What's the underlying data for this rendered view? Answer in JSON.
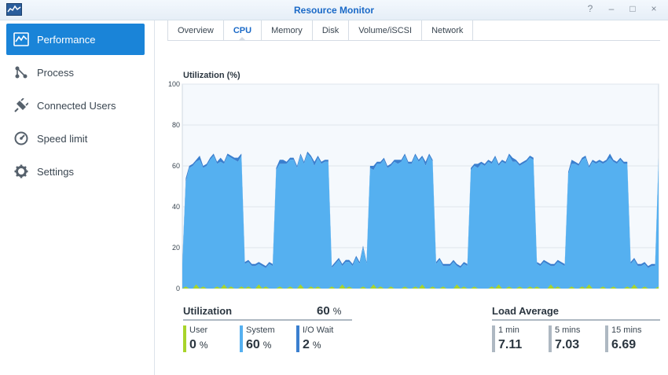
{
  "window": {
    "title": "Resource Monitor",
    "buttons": [
      "?",
      "–",
      "□",
      "×"
    ]
  },
  "sidebar": {
    "items": [
      {
        "label": "Performance",
        "icon": "chart-icon",
        "active": true
      },
      {
        "label": "Process",
        "icon": "process-icon",
        "active": false
      },
      {
        "label": "Connected Users",
        "icon": "plug-icon",
        "active": false
      },
      {
        "label": "Speed limit",
        "icon": "speedometer-icon",
        "active": false
      },
      {
        "label": "Settings",
        "icon": "gear-icon",
        "active": false
      }
    ]
  },
  "tabs": [
    {
      "label": "Overview",
      "active": false
    },
    {
      "label": "CPU",
      "active": true
    },
    {
      "label": "Memory",
      "active": false
    },
    {
      "label": "Disk",
      "active": false
    },
    {
      "label": "Volume/iSCSI",
      "active": false
    },
    {
      "label": "Network",
      "active": false
    }
  ],
  "chart_data": {
    "type": "area",
    "title": "Utilization (%)",
    "ylim": [
      0,
      100
    ],
    "yticks": [
      "0",
      "20",
      "40",
      "60",
      "80",
      "100"
    ],
    "grid": true,
    "series": [
      {
        "name": "System",
        "color": "#55b0f0",
        "values": [
          12,
          52,
          59,
          60,
          62,
          63,
          59,
          60,
          63,
          65,
          61,
          62,
          61,
          65,
          64,
          63,
          62,
          65,
          12,
          13,
          11,
          11,
          12,
          11,
          10,
          12,
          11,
          58,
          61,
          61,
          61,
          63,
          63,
          59,
          65,
          61,
          66,
          64,
          60,
          64,
          61,
          62,
          62,
          10,
          12,
          14,
          11,
          13,
          13,
          11,
          15,
          12,
          20,
          12,
          59,
          58,
          61,
          61,
          63,
          59,
          60,
          62,
          61,
          62,
          65,
          61,
          61,
          65,
          62,
          64,
          60,
          65,
          62,
          12,
          14,
          11,
          11,
          11,
          13,
          11,
          10,
          12,
          11,
          58,
          60,
          59,
          61,
          60,
          62,
          61,
          64,
          60,
          62,
          61,
          65,
          62,
          62,
          60,
          61,
          62,
          64,
          63,
          12,
          11,
          13,
          12,
          11,
          11,
          13,
          12,
          11,
          56,
          61,
          61,
          60,
          63,
          64,
          59,
          62,
          61,
          62,
          61,
          62,
          64,
          62,
          61,
          63,
          61,
          61,
          12,
          14,
          11,
          11,
          12,
          10,
          11,
          11,
          63
        ]
      },
      {
        "name": "I/O Wait",
        "color": "#3a7fcf",
        "values": [
          1,
          2,
          1,
          1,
          1,
          2,
          1,
          1,
          1,
          1,
          1,
          2,
          1,
          1,
          1,
          1,
          2,
          1,
          1,
          1,
          1,
          1,
          1,
          1,
          1,
          1,
          1,
          1,
          2,
          2,
          1,
          1,
          1,
          1,
          1,
          1,
          1,
          1,
          2,
          1,
          1,
          1,
          1,
          1,
          1,
          1,
          1,
          1,
          1,
          1,
          1,
          1,
          1,
          1,
          1,
          2,
          1,
          1,
          1,
          1,
          1,
          1,
          2,
          1,
          1,
          1,
          1,
          1,
          1,
          1,
          2,
          1,
          1,
          1,
          1,
          1,
          1,
          1,
          1,
          1,
          1,
          1,
          1,
          1,
          1,
          2,
          1,
          1,
          1,
          1,
          1,
          1,
          1,
          1,
          1,
          2,
          1,
          1,
          1,
          1,
          1,
          1,
          1,
          1,
          1,
          1,
          1,
          1,
          1,
          1,
          1,
          1,
          2,
          1,
          1,
          1,
          1,
          1,
          1,
          1,
          1,
          1,
          1,
          2,
          1,
          1,
          1,
          1,
          1,
          1,
          1,
          1,
          1,
          1,
          1,
          1,
          1,
          1,
          1,
          1
        ]
      },
      {
        "name": "User",
        "color": "#a8d42a",
        "values": [
          0,
          1,
          0,
          0,
          2,
          0,
          1,
          0,
          0,
          0,
          1,
          0,
          2,
          0,
          1,
          0,
          0,
          1,
          0,
          1,
          0,
          0,
          2,
          0,
          1,
          0,
          0,
          0,
          1,
          0,
          0,
          1,
          0,
          0,
          2,
          0,
          0,
          1,
          0,
          1,
          0,
          0,
          0,
          1,
          0,
          0,
          2,
          0,
          1,
          0,
          0,
          0,
          1,
          0,
          0,
          2,
          0,
          1,
          0,
          0,
          1,
          0,
          0,
          0,
          1,
          0,
          0,
          1,
          0,
          2,
          0,
          0,
          1,
          0,
          0,
          1,
          0,
          0,
          0,
          2,
          0,
          1,
          0,
          0,
          1,
          0,
          0,
          0,
          0,
          1,
          0,
          2,
          0,
          0,
          1,
          0,
          0,
          1,
          0,
          0,
          1,
          0,
          1,
          0,
          0,
          0,
          2,
          0,
          1,
          0,
          0,
          0,
          1,
          0,
          0,
          1,
          0,
          2,
          0,
          0,
          0,
          1,
          0,
          0,
          1,
          0,
          0,
          0,
          1,
          0,
          2,
          0,
          0,
          1,
          0,
          0,
          0,
          1,
          0,
          1
        ]
      }
    ]
  },
  "utilization": {
    "label": "Utilization",
    "total": "60",
    "unit": "%",
    "stats": [
      {
        "name": "User",
        "value": "0",
        "unit": "%",
        "color": "#a8d42a"
      },
      {
        "name": "System",
        "value": "60",
        "unit": "%",
        "color": "#55b0f0"
      },
      {
        "name": "I/O Wait",
        "value": "2",
        "unit": "%",
        "color": "#3a7fcf"
      }
    ]
  },
  "load_average": {
    "label": "Load Average",
    "stats": [
      {
        "name": "1 min",
        "value": "7.11",
        "color": "#aeb8c2"
      },
      {
        "name": "5 mins",
        "value": "7.03",
        "color": "#aeb8c2"
      },
      {
        "name": "15 mins",
        "value": "6.69",
        "color": "#aeb8c2"
      }
    ]
  }
}
